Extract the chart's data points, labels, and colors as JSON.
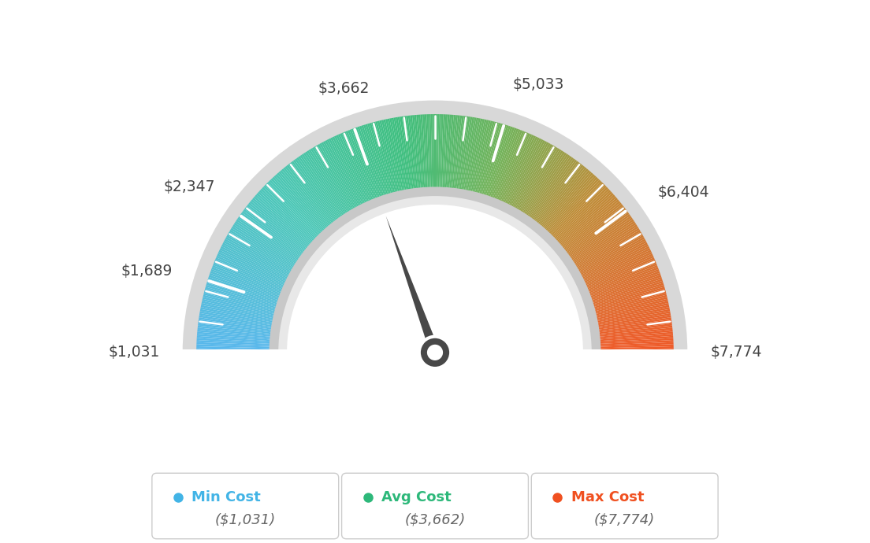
{
  "min_val": 1031,
  "max_val": 7774,
  "avg_val": 3662,
  "needle_value": 3662,
  "legend": [
    {
      "label": "Min Cost",
      "value": "($1,031)",
      "color": "#42b4e6"
    },
    {
      "label": "Avg Cost",
      "value": "($3,662)",
      "color": "#2db87a"
    },
    {
      "label": "Max Cost",
      "value": "($7,774)",
      "color": "#f05020"
    }
  ],
  "bg_color": "#ffffff",
  "outer_r": 0.78,
  "inner_r": 0.5,
  "gray_ring_extra": 0.045,
  "color_stops": [
    [
      0.0,
      [
        0.35,
        0.72,
        0.93
      ]
    ],
    [
      0.25,
      [
        0.3,
        0.78,
        0.72
      ]
    ],
    [
      0.45,
      [
        0.25,
        0.75,
        0.5
      ]
    ],
    [
      0.6,
      [
        0.45,
        0.7,
        0.35
      ]
    ],
    [
      0.75,
      [
        0.75,
        0.55,
        0.22
      ]
    ],
    [
      1.0,
      [
        0.94,
        0.35,
        0.16
      ]
    ]
  ],
  "label_data": [
    [
      1031,
      "$1,031",
      "right",
      "center",
      0.0
    ],
    [
      1689,
      "$1,689",
      "right",
      "center",
      0.0
    ],
    [
      2347,
      "$2,347",
      "right",
      "bottom",
      0.0
    ],
    [
      3662,
      "$3,662",
      "center",
      "bottom",
      0.0
    ],
    [
      5033,
      "$5,033",
      "left",
      "bottom",
      0.0
    ],
    [
      6404,
      "$6,404",
      "left",
      "center",
      0.0
    ],
    [
      7774,
      "$7,774",
      "left",
      "center",
      0.0
    ]
  ]
}
